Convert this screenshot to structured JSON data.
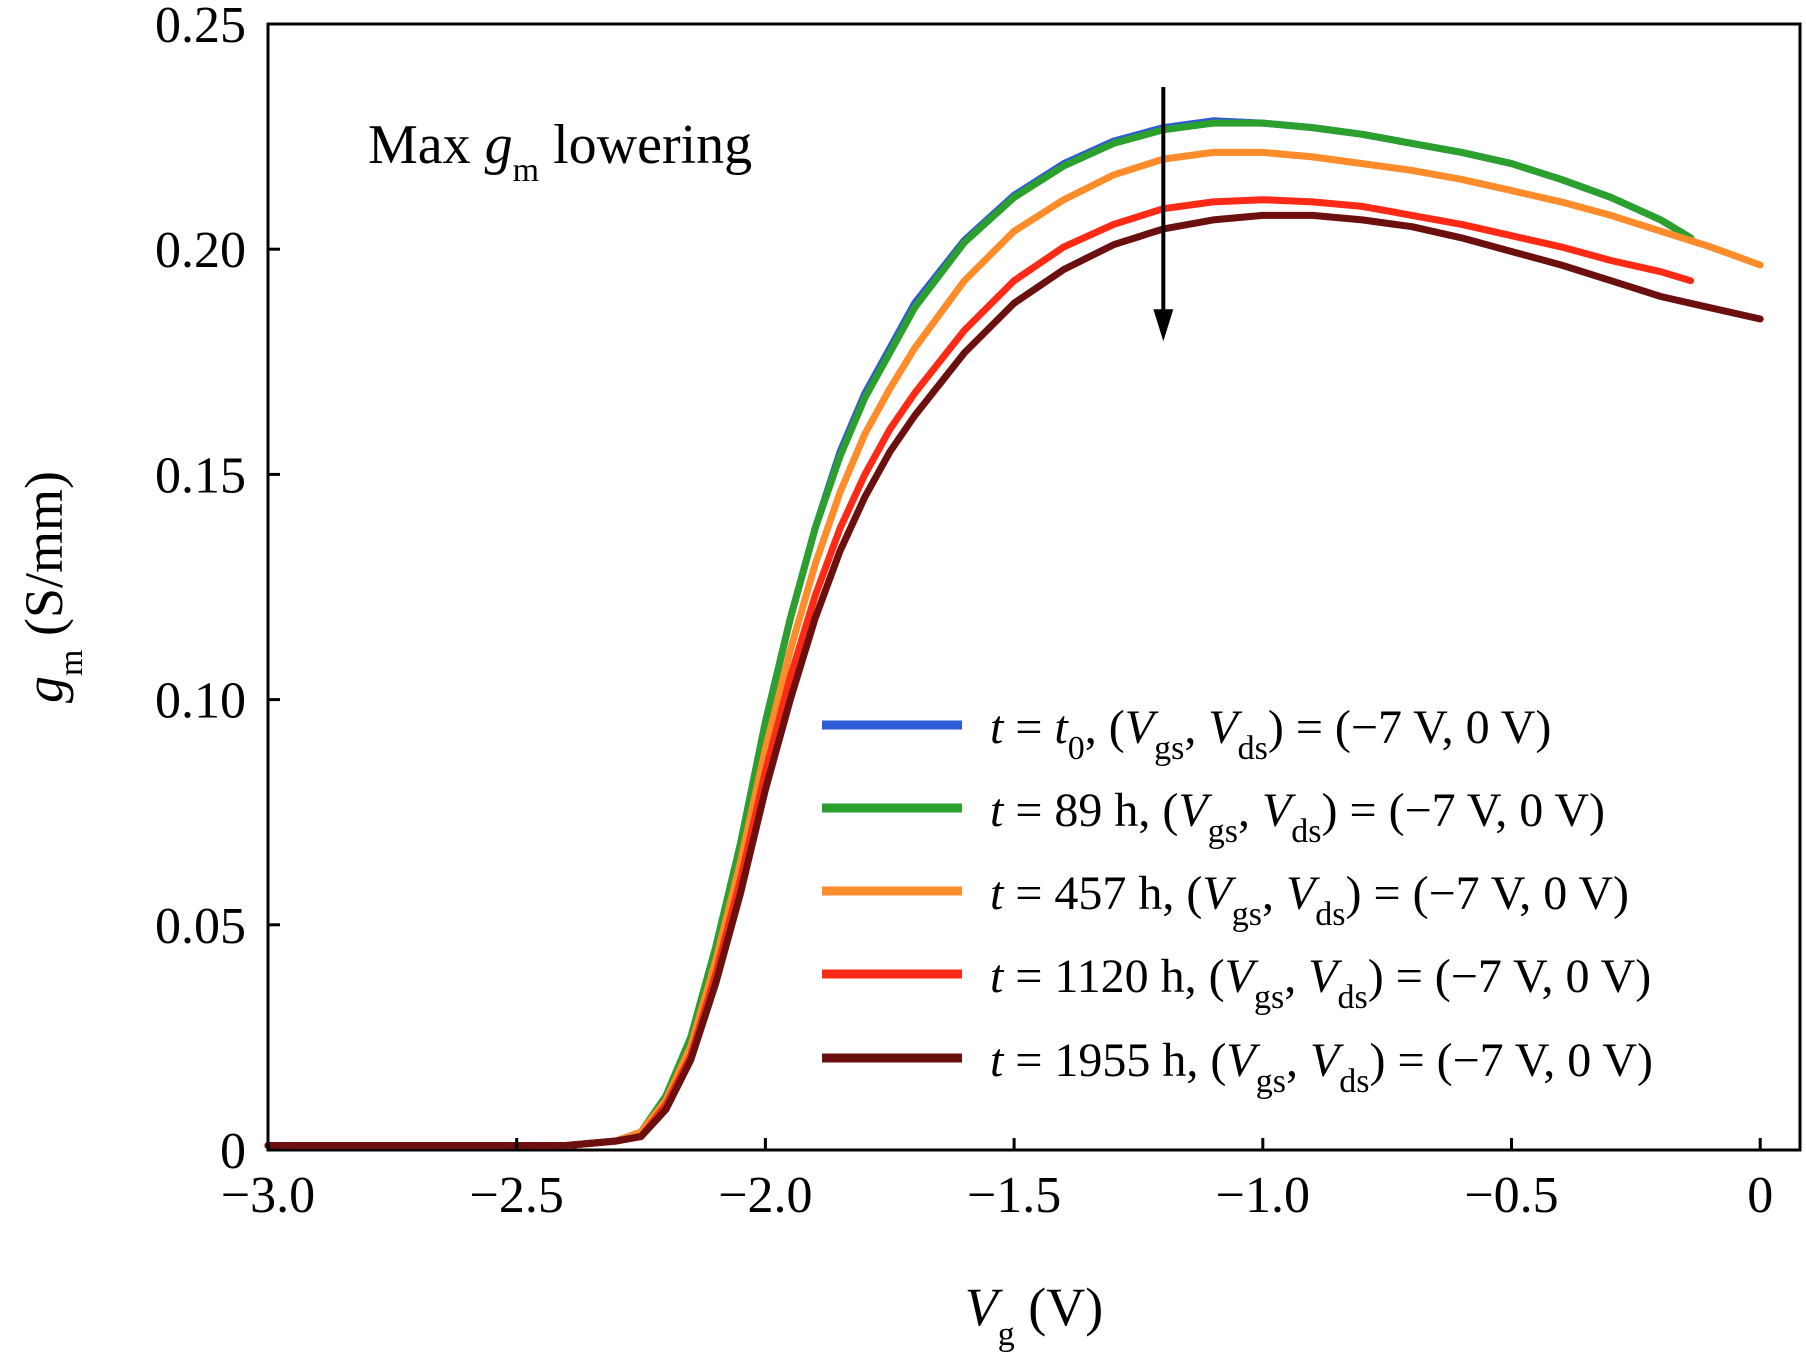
{
  "chart_data": {
    "type": "line",
    "xlabel": {
      "var": "V",
      "sub": "g",
      "unit": " (V)"
    },
    "ylabel": {
      "var": "g",
      "sub": "m",
      "unit": " (S/mm)"
    },
    "xlim": [
      -3.0,
      0.08
    ],
    "ylim": [
      0,
      0.25
    ],
    "x_ticks": [
      -3.0,
      -2.5,
      -2.0,
      -1.5,
      -1.0,
      -0.5,
      0
    ],
    "x_tick_labels": [
      "−3.0",
      "−2.5",
      "−2.0",
      "−1.5",
      "−1.0",
      "−0.5",
      "0"
    ],
    "y_ticks": [
      0,
      0.05,
      0.1,
      0.15,
      0.2,
      0.25
    ],
    "y_tick_labels": [
      "0",
      "0.05",
      "0.10",
      "0.15",
      "0.20",
      "0.25"
    ],
    "grid": false,
    "legend_position": "bottom-right",
    "annotation": {
      "pre": "Max ",
      "var": "g",
      "sub": "m",
      "post": " lowering",
      "arrow": {
        "x": -1.2,
        "y_from": 0.236,
        "y_to": 0.18
      }
    },
    "series": [
      {
        "name": "t = t0, (Vgs, Vds) = (−7 V, 0 V)",
        "legend_parts": {
          "t": "t",
          "eq": " = ",
          "t_val": "t",
          "t_sub": "0",
          "rest": ", (",
          "v1": "V",
          "v1sub": "gs",
          "comma": ", ",
          "v2": "V",
          "v2sub": "ds",
          "tail": ") = (−7 V, 0 V)"
        },
        "color": "#2e5bd6",
        "x": [
          -3.0,
          -2.6,
          -2.4,
          -2.3,
          -2.25,
          -2.2,
          -2.15,
          -2.1,
          -2.05,
          -2.0,
          -1.95,
          -1.9,
          -1.85,
          -1.8,
          -1.75,
          -1.7,
          -1.6,
          -1.5,
          -1.4,
          -1.3,
          -1.2,
          -1.1,
          -1.0,
          -0.9,
          -0.8,
          -0.7,
          -0.6,
          -0.5,
          -0.4,
          -0.3,
          -0.2,
          -0.14
        ],
        "y": [
          0.001,
          0.001,
          0.001,
          0.002,
          0.004,
          0.012,
          0.025,
          0.045,
          0.068,
          0.095,
          0.118,
          0.138,
          0.155,
          0.168,
          0.178,
          0.188,
          0.202,
          0.212,
          0.219,
          0.224,
          0.227,
          0.2285,
          0.228,
          0.227,
          0.2255,
          0.2235,
          0.2215,
          0.219,
          0.2155,
          0.2115,
          0.2065,
          0.2025
        ]
      },
      {
        "name": "t = 89 h, (Vgs, Vds) = (−7 V, 0 V)",
        "legend_parts": {
          "t": "t",
          "eq": " = 89 h",
          "t_val": "",
          "t_sub": "",
          "rest": ", (",
          "v1": "V",
          "v1sub": "gs",
          "comma": ", ",
          "v2": "V",
          "v2sub": "ds",
          "tail": ") = (−7 V, 0 V)"
        },
        "color": "#2ca02c",
        "x": [
          -3.0,
          -2.6,
          -2.4,
          -2.3,
          -2.25,
          -2.2,
          -2.15,
          -2.1,
          -2.05,
          -2.0,
          -1.95,
          -1.9,
          -1.85,
          -1.8,
          -1.75,
          -1.7,
          -1.6,
          -1.5,
          -1.4,
          -1.3,
          -1.2,
          -1.1,
          -1.0,
          -0.9,
          -0.8,
          -0.7,
          -0.6,
          -0.5,
          -0.4,
          -0.3,
          -0.2,
          -0.14
        ],
        "y": [
          0.001,
          0.001,
          0.001,
          0.002,
          0.004,
          0.012,
          0.025,
          0.045,
          0.068,
          0.095,
          0.118,
          0.138,
          0.154,
          0.167,
          0.177,
          0.187,
          0.2015,
          0.2115,
          0.2185,
          0.2235,
          0.2265,
          0.228,
          0.228,
          0.227,
          0.2255,
          0.2235,
          0.2215,
          0.219,
          0.2155,
          0.2115,
          0.2065,
          0.2025
        ]
      },
      {
        "name": "t = 457 h, (Vgs, Vds) = (−7 V, 0 V)",
        "legend_parts": {
          "t": "t",
          "eq": " = 457 h",
          "t_val": "",
          "t_sub": "",
          "rest": ", (",
          "v1": "V",
          "v1sub": "gs",
          "comma": ", ",
          "v2": "V",
          "v2sub": "ds",
          "tail": ") = (−7 V, 0 V)"
        },
        "color": "#ff8c2a",
        "x": [
          -3.0,
          -2.6,
          -2.4,
          -2.3,
          -2.25,
          -2.2,
          -2.15,
          -2.1,
          -2.05,
          -2.0,
          -1.95,
          -1.9,
          -1.85,
          -1.8,
          -1.75,
          -1.7,
          -1.6,
          -1.5,
          -1.4,
          -1.3,
          -1.2,
          -1.1,
          -1.0,
          -0.9,
          -0.8,
          -0.7,
          -0.6,
          -0.5,
          -0.4,
          -0.3,
          -0.2,
          -0.1,
          0.0
        ],
        "y": [
          0.001,
          0.001,
          0.001,
          0.002,
          0.004,
          0.011,
          0.023,
          0.042,
          0.064,
          0.089,
          0.111,
          0.13,
          0.146,
          0.159,
          0.169,
          0.178,
          0.193,
          0.204,
          0.211,
          0.2165,
          0.22,
          0.2215,
          0.2215,
          0.2205,
          0.219,
          0.2175,
          0.2155,
          0.213,
          0.2105,
          0.2075,
          0.204,
          0.2005,
          0.1965
        ]
      },
      {
        "name": "t = 1120 h, (Vgs, Vds) = (−7 V, 0 V)",
        "legend_parts": {
          "t": "t",
          "eq": " = 1120 h",
          "t_val": "",
          "t_sub": "",
          "rest": ", (",
          "v1": "V",
          "v1sub": "gs",
          "comma": ", ",
          "v2": "V",
          "v2sub": "ds",
          "tail": ") = (−7 V, 0 V)"
        },
        "color": "#ff2a16",
        "x": [
          -3.0,
          -2.6,
          -2.4,
          -2.3,
          -2.25,
          -2.2,
          -2.15,
          -2.1,
          -2.05,
          -2.0,
          -1.95,
          -1.9,
          -1.85,
          -1.8,
          -1.75,
          -1.7,
          -1.6,
          -1.5,
          -1.4,
          -1.3,
          -1.2,
          -1.1,
          -1.0,
          -0.9,
          -0.8,
          -0.7,
          -0.6,
          -0.5,
          -0.4,
          -0.3,
          -0.2,
          -0.14
        ],
        "y": [
          0.001,
          0.001,
          0.001,
          0.002,
          0.003,
          0.01,
          0.021,
          0.039,
          0.06,
          0.084,
          0.105,
          0.123,
          0.138,
          0.15,
          0.16,
          0.168,
          0.182,
          0.193,
          0.2005,
          0.2055,
          0.209,
          0.2105,
          0.211,
          0.2105,
          0.2095,
          0.2075,
          0.2055,
          0.203,
          0.2005,
          0.1975,
          0.195,
          0.193
        ]
      },
      {
        "name": "t = 1955 h, (Vgs, Vds) = (−7 V, 0 V)",
        "legend_parts": {
          "t": "t",
          "eq": " = 1955 h",
          "t_val": "",
          "t_sub": "",
          "rest": ", (",
          "v1": "V",
          "v1sub": "gs",
          "comma": ", ",
          "v2": "V",
          "v2sub": "ds",
          "tail": ") = (−7 V, 0 V)"
        },
        "color": "#6b0f0f",
        "x": [
          -3.0,
          -2.6,
          -2.4,
          -2.3,
          -2.25,
          -2.2,
          -2.15,
          -2.1,
          -2.05,
          -2.0,
          -1.95,
          -1.9,
          -1.85,
          -1.8,
          -1.75,
          -1.7,
          -1.6,
          -1.5,
          -1.4,
          -1.3,
          -1.2,
          -1.1,
          -1.0,
          -0.9,
          -0.8,
          -0.7,
          -0.6,
          -0.5,
          -0.4,
          -0.3,
          -0.2,
          -0.1,
          0.0
        ],
        "y": [
          0.001,
          0.001,
          0.001,
          0.002,
          0.003,
          0.009,
          0.02,
          0.037,
          0.057,
          0.08,
          0.1,
          0.118,
          0.133,
          0.145,
          0.155,
          0.163,
          0.177,
          0.188,
          0.1955,
          0.201,
          0.2045,
          0.2065,
          0.2075,
          0.2075,
          0.2065,
          0.205,
          0.2025,
          0.1995,
          0.1965,
          0.193,
          0.1895,
          0.187,
          0.1845
        ]
      }
    ]
  }
}
